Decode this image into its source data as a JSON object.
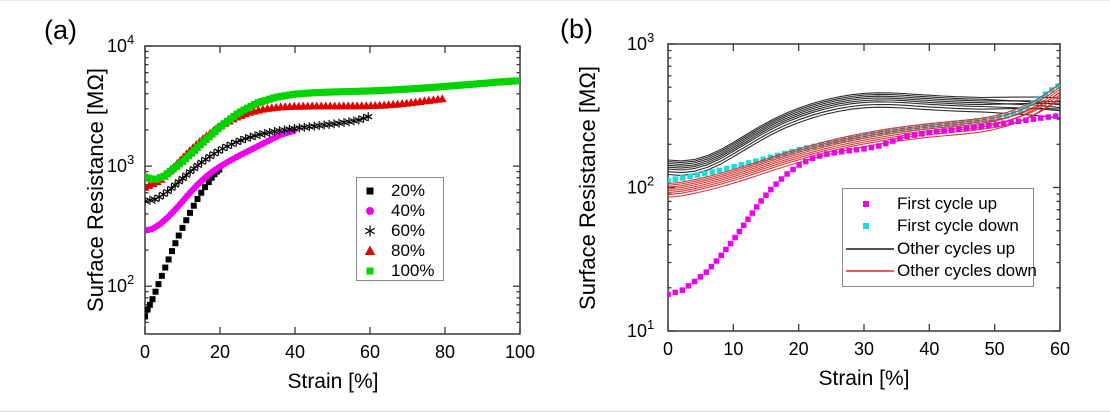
{
  "panels": [
    {
      "tag": "(a)",
      "xlabel": "Strain [%]",
      "ylabel": "Surface Resistance [MΩ]"
    },
    {
      "tag": "(b)",
      "xlabel": "Strain [%]",
      "ylabel": "Surface Resistance [MΩ]"
    }
  ],
  "colors": {
    "axis": "#3a3a3a",
    "black": "#000000",
    "magenta": "#ee00ee",
    "cyan": "#17dede",
    "red": "#e30000",
    "red_line": "#d42b2b",
    "black_line": "#1a1a1a",
    "green": "#00d300"
  },
  "chart_data": [
    {
      "type": "scatter",
      "title": "",
      "xlabel": "Strain [%]",
      "ylabel": "Surface Resistance [MΩ]",
      "xlim": [
        0,
        100
      ],
      "ylim": [
        40,
        10000
      ],
      "yscale": "log",
      "grid": false,
      "x_ticks": [
        0,
        20,
        40,
        60,
        80,
        100
      ],
      "y_tick_exponents": [
        2,
        3,
        4
      ],
      "legend_position": "right-center-box",
      "series": [
        {
          "name": "20%",
          "marker": "square",
          "color": "#000000",
          "points": [
            [
              0,
              56
            ],
            [
              0.7,
              64
            ],
            [
              1.3,
              70
            ],
            [
              2,
              78
            ],
            [
              2.8,
              90
            ],
            [
              3.6,
              104
            ],
            [
              4.5,
              122
            ],
            [
              5.4,
              143
            ],
            [
              6.3,
              167
            ],
            [
              7.2,
              196
            ],
            [
              8.1,
              228
            ],
            [
              9,
              264
            ],
            [
              10,
              306
            ],
            [
              11,
              354
            ],
            [
              12,
              408
            ],
            [
              13,
              468
            ],
            [
              14,
              532
            ],
            [
              15,
              600
            ],
            [
              16,
              668
            ],
            [
              17,
              736
            ],
            [
              17.8,
              800
            ],
            [
              18.5,
              855
            ],
            [
              19.2,
              900
            ],
            [
              19.8,
              935
            ]
          ]
        },
        {
          "name": "40%",
          "marker": "circle",
          "color": "#ee00ee",
          "points": [
            [
              0,
              290
            ],
            [
              2,
              300
            ],
            [
              4,
              328
            ],
            [
              6,
              372
            ],
            [
              8,
              432
            ],
            [
              10,
              508
            ],
            [
              12,
              600
            ],
            [
              14,
              700
            ],
            [
              16,
              800
            ],
            [
              18,
              900
            ],
            [
              20,
              990
            ],
            [
              22,
              1080
            ],
            [
              24,
              1170
            ],
            [
              26,
              1262
            ],
            [
              28,
              1355
            ],
            [
              30,
              1460
            ],
            [
              32,
              1570
            ],
            [
              34,
              1690
            ],
            [
              36,
              1810
            ],
            [
              38,
              1900
            ],
            [
              40,
              1970
            ]
          ]
        },
        {
          "name": "60%",
          "marker": "asterisk",
          "color": "#000000",
          "points": [
            [
              0,
              510
            ],
            [
              3,
              532
            ],
            [
              6,
              612
            ],
            [
              9,
              738
            ],
            [
              12,
              896
            ],
            [
              15,
              1070
            ],
            [
              18,
              1246
            ],
            [
              21,
              1415
            ],
            [
              24,
              1568
            ],
            [
              27,
              1702
            ],
            [
              30,
              1813
            ],
            [
              33,
              1903
            ],
            [
              36,
              1977
            ],
            [
              39,
              2040
            ],
            [
              42,
              2095
            ],
            [
              45,
              2148
            ],
            [
              48,
              2202
            ],
            [
              51,
              2260
            ],
            [
              54,
              2327
            ],
            [
              57,
              2420
            ],
            [
              60,
              2610
            ]
          ]
        },
        {
          "name": "80%",
          "marker": "triangle",
          "color": "#e30000",
          "points": [
            [
              0,
              665
            ],
            [
              4,
              760
            ],
            [
              8,
              1010
            ],
            [
              12,
              1350
            ],
            [
              16,
              1750
            ],
            [
              20,
              2155
            ],
            [
              24,
              2520
            ],
            [
              28,
              2810
            ],
            [
              32,
              3005
            ],
            [
              36,
              3105
            ],
            [
              40,
              3145
            ],
            [
              44,
              3155
            ],
            [
              48,
              3160
            ],
            [
              52,
              3163
            ],
            [
              56,
              3168
            ],
            [
              60,
              3180
            ],
            [
              64,
              3215
            ],
            [
              68,
              3290
            ],
            [
              72,
              3400
            ],
            [
              76,
              3530
            ],
            [
              80,
              3650
            ]
          ]
        },
        {
          "name": "100%",
          "marker": "square",
          "color": "#00d300",
          "points": [
            [
              0,
              810
            ],
            [
              2.5,
              770
            ],
            [
              5,
              820
            ],
            [
              10,
              1090
            ],
            [
              15,
              1530
            ],
            [
              20,
              2120
            ],
            [
              25,
              2780
            ],
            [
              30,
              3360
            ],
            [
              35,
              3750
            ],
            [
              40,
              3975
            ],
            [
              45,
              4085
            ],
            [
              50,
              4140
            ],
            [
              55,
              4180
            ],
            [
              60,
              4225
            ],
            [
              65,
              4290
            ],
            [
              70,
              4375
            ],
            [
              75,
              4480
            ],
            [
              80,
              4605
            ],
            [
              85,
              4740
            ],
            [
              90,
              4880
            ],
            [
              95,
              5030
            ],
            [
              100,
              5140
            ]
          ]
        }
      ]
    },
    {
      "type": "mixed",
      "title": "",
      "xlabel": "Strain [%]",
      "ylabel": "Surface Resistance [MΩ]",
      "xlim": [
        0,
        60
      ],
      "ylim": [
        10,
        1000
      ],
      "yscale": "log",
      "grid": false,
      "x_ticks": [
        0,
        10,
        20,
        30,
        40,
        50,
        60
      ],
      "y_tick_exponents": [
        1,
        2,
        3
      ],
      "legend_position": "lower-right-box",
      "series": [
        {
          "name": "First cycle up",
          "marker": "square",
          "color": "#ee00ee",
          "points": [
            [
              0,
              18
            ],
            [
              2,
              19
            ],
            [
              4,
              22
            ],
            [
              6,
              26
            ],
            [
              8,
              33
            ],
            [
              10,
              43
            ],
            [
              12,
              58
            ],
            [
              14,
              78
            ],
            [
              16,
              100
            ],
            [
              18,
              122
            ],
            [
              20,
              143
            ],
            [
              22,
              159
            ],
            [
              24,
              170
            ],
            [
              26,
              176
            ],
            [
              28,
              181
            ],
            [
              30,
              186
            ],
            [
              32,
              193
            ],
            [
              34,
              207
            ],
            [
              36,
              225
            ],
            [
              38,
              233
            ],
            [
              40,
              241
            ],
            [
              42,
              247
            ],
            [
              44,
              253
            ],
            [
              46,
              259
            ],
            [
              48,
              266
            ],
            [
              50,
              274
            ],
            [
              52,
              283
            ],
            [
              54,
              291
            ],
            [
              56,
              300
            ],
            [
              58,
              309
            ],
            [
              60,
              317
            ]
          ]
        },
        {
          "name": "First cycle down",
          "marker": "square",
          "color": "#17dede",
          "points": [
            [
              0,
              112
            ],
            [
              2,
              116
            ],
            [
              4,
              121
            ],
            [
              6,
              126
            ],
            [
              8,
              132
            ],
            [
              10,
              139
            ],
            [
              12,
              147
            ],
            [
              14,
              155
            ],
            [
              16,
              164
            ],
            [
              18,
              173
            ],
            [
              20,
              183
            ],
            [
              22,
              192
            ],
            [
              24,
              201
            ],
            [
              26,
              211
            ],
            [
              28,
              220
            ],
            [
              30,
              229
            ],
            [
              32,
              238
            ],
            [
              34,
              246
            ],
            [
              36,
              253
            ],
            [
              38,
              260
            ],
            [
              40,
              267
            ],
            [
              42,
              273
            ],
            [
              44,
              280
            ],
            [
              46,
              287
            ],
            [
              48,
              294
            ],
            [
              50,
              302
            ],
            [
              52,
              317
            ],
            [
              54,
              345
            ],
            [
              56,
              390
            ],
            [
              58,
              455
            ],
            [
              60,
              520
            ]
          ]
        },
        {
          "name": "Other cycles up",
          "marker": "line",
          "color": "#1a1a1a",
          "base": [
            [
              0,
              140
            ],
            [
              2,
              138
            ],
            [
              4,
              141
            ],
            [
              6,
              150
            ],
            [
              8,
              165
            ],
            [
              10,
              186
            ],
            [
              12,
              211
            ],
            [
              14,
              239
            ],
            [
              16,
              268
            ],
            [
              18,
              296
            ],
            [
              20,
              322
            ],
            [
              22,
              346
            ],
            [
              24,
              367
            ],
            [
              26,
              385
            ],
            [
              28,
              399
            ],
            [
              30,
              408
            ],
            [
              32,
              412
            ],
            [
              34,
              411
            ],
            [
              36,
              407
            ],
            [
              38,
              401
            ],
            [
              40,
              396
            ],
            [
              42,
              391
            ],
            [
              44,
              387
            ],
            [
              46,
              384
            ],
            [
              48,
              382
            ],
            [
              50,
              381
            ],
            [
              52,
              380
            ],
            [
              54,
              379
            ],
            [
              56,
              377
            ],
            [
              58,
              373
            ],
            [
              60,
              368
            ]
          ],
          "factors": [
            0.88,
            0.92,
            0.96,
            0.99,
            1.02,
            1.05,
            1.08,
            1.11
          ],
          "end_tilt": [
            -0.06,
            0.04,
            -0.03,
            0.05,
            -0.04,
            0.02,
            -0.05,
            0.03
          ]
        },
        {
          "name": "Other cycles down",
          "marker": "line",
          "color": "#d42b2b",
          "base": [
            [
              0,
              95
            ],
            [
              2,
              97
            ],
            [
              4,
              101
            ],
            [
              6,
              106
            ],
            [
              8,
              112
            ],
            [
              10,
              119
            ],
            [
              12,
              127
            ],
            [
              14,
              136
            ],
            [
              16,
              146
            ],
            [
              18,
              156
            ],
            [
              20,
              166
            ],
            [
              22,
              176
            ],
            [
              24,
              186
            ],
            [
              26,
              196
            ],
            [
              28,
              205
            ],
            [
              30,
              214
            ],
            [
              32,
              222
            ],
            [
              34,
              230
            ],
            [
              36,
              237
            ],
            [
              38,
              243
            ],
            [
              40,
              249
            ],
            [
              42,
              254
            ],
            [
              44,
              259
            ],
            [
              46,
              264
            ],
            [
              48,
              271
            ],
            [
              50,
              280
            ],
            [
              52,
              294
            ],
            [
              54,
              315
            ],
            [
              56,
              345
            ],
            [
              58,
              390
            ],
            [
              60,
              450
            ]
          ],
          "factors": [
            0.9,
            0.94,
            0.97,
            1.0,
            1.03,
            1.06,
            1.09,
            1.12
          ],
          "end_tilt": [
            0.05,
            -0.03,
            0.06,
            -0.02,
            0.04,
            -0.04,
            0.02,
            0.05
          ]
        }
      ]
    }
  ]
}
